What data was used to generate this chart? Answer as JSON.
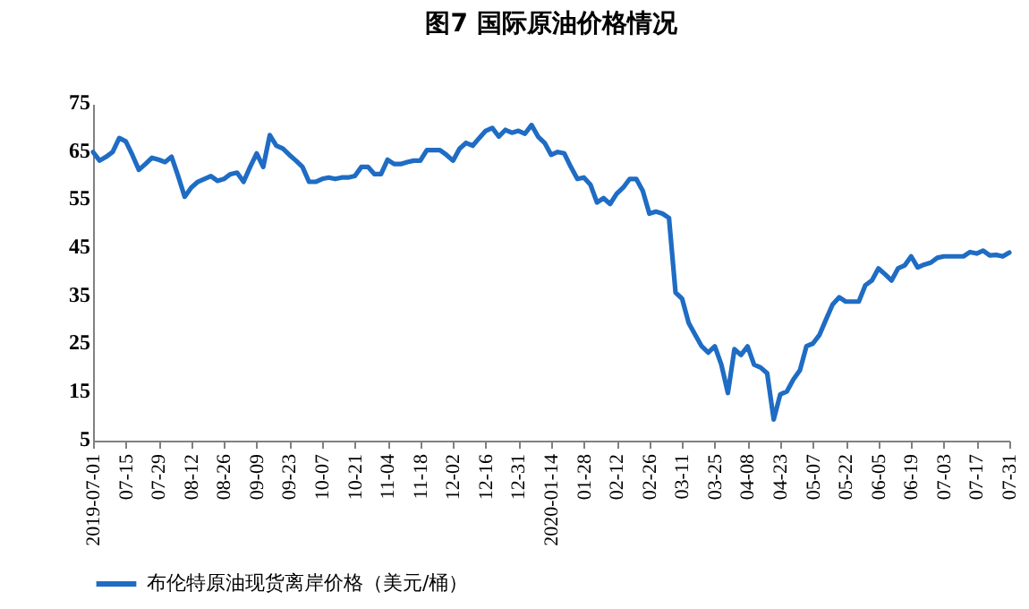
{
  "chart_data": {
    "type": "line",
    "title": "图7  国际原油价格情况",
    "categories": [
      "2019-07-01",
      null,
      null,
      null,
      null,
      "07-15",
      null,
      null,
      null,
      null,
      "07-29",
      null,
      null,
      null,
      null,
      "08-12",
      null,
      null,
      null,
      null,
      "08-26",
      null,
      null,
      null,
      null,
      "09-09",
      null,
      null,
      null,
      null,
      "09-23",
      null,
      null,
      null,
      null,
      "10-07",
      null,
      null,
      null,
      null,
      "10-21",
      null,
      null,
      null,
      null,
      "11-04",
      null,
      null,
      null,
      null,
      "11-18",
      null,
      null,
      null,
      null,
      "12-02",
      null,
      null,
      null,
      null,
      "12-16",
      null,
      null,
      null,
      null,
      "12-31",
      null,
      null,
      null,
      null,
      "2020-01-14",
      null,
      null,
      null,
      null,
      "01-28",
      null,
      null,
      null,
      null,
      "02-12",
      null,
      null,
      null,
      null,
      "02-26",
      null,
      null,
      null,
      null,
      "03-11",
      null,
      null,
      null,
      null,
      "03-25",
      null,
      null,
      null,
      null,
      "04-08",
      null,
      null,
      null,
      null,
      "04-23",
      null,
      null,
      null,
      null,
      "05-07",
      null,
      null,
      null,
      null,
      "05-22",
      null,
      null,
      null,
      null,
      "06-05",
      null,
      null,
      null,
      null,
      "06-19",
      null,
      null,
      null,
      null,
      "07-03",
      null,
      null,
      null,
      null,
      "07-17",
      null,
      null,
      null,
      null,
      "07-31"
    ],
    "series": [
      {
        "name": "布伦特原油现货离岸价格（美元/桶）",
        "color": "#1f6cc4",
        "values": [
          65.0,
          63.2,
          64,
          65,
          67.9,
          67.2,
          64.4,
          61.3,
          62.5,
          63.8,
          63.4,
          62.9,
          64,
          60,
          55.7,
          57.6,
          58.8,
          59.4,
          60,
          59,
          59.4,
          60.4,
          60.7,
          58.8,
          61.9,
          64.7,
          61.9,
          68.5,
          66.3,
          65.7,
          64.4,
          63.2,
          61.9,
          58.8,
          58.8,
          59.4,
          59.7,
          59.4,
          59.7,
          59.7,
          60,
          61.9,
          61.9,
          60.4,
          60.4,
          63.4,
          62.5,
          62.5,
          62.9,
          63.2,
          63.2,
          65.4,
          65.4,
          65.4,
          64.4,
          63.2,
          65.7,
          66.9,
          66.3,
          67.9,
          69.4,
          70,
          68.2,
          69.6,
          69,
          69.4,
          68.8,
          70.6,
          68.2,
          66.9,
          64.4,
          65,
          64.7,
          61.9,
          59.4,
          59.7,
          58.2,
          54.5,
          55.4,
          54.2,
          56.3,
          57.6,
          59.4,
          59.4,
          56.9,
          52.2,
          52.6,
          52.2,
          51.3,
          35.8,
          34.5,
          29.5,
          27,
          24.6,
          23.3,
          24.6,
          20.8,
          14.9,
          24,
          22.8,
          24.6,
          20.8,
          20.2,
          19,
          9.4,
          14.6,
          15.2,
          17.7,
          19.6,
          24.6,
          25.2,
          27,
          30.2,
          33.3,
          34.8,
          33.9,
          33.9,
          33.9,
          37.3,
          38.3,
          40.8,
          39.6,
          38.3,
          40.8,
          41.4,
          43.3,
          41,
          41.6,
          42,
          43,
          43.3,
          43.3,
          43.3,
          43.3,
          44.2,
          43.9,
          44.5,
          43.5,
          43.6,
          43.3,
          44.1
        ]
      }
    ],
    "ylim": [
      5,
      75
    ],
    "yticks": [
      5,
      15,
      25,
      35,
      45,
      55,
      65,
      75
    ],
    "grid": false,
    "legend": "bottom",
    "marker": "none",
    "line_style": "solid"
  }
}
